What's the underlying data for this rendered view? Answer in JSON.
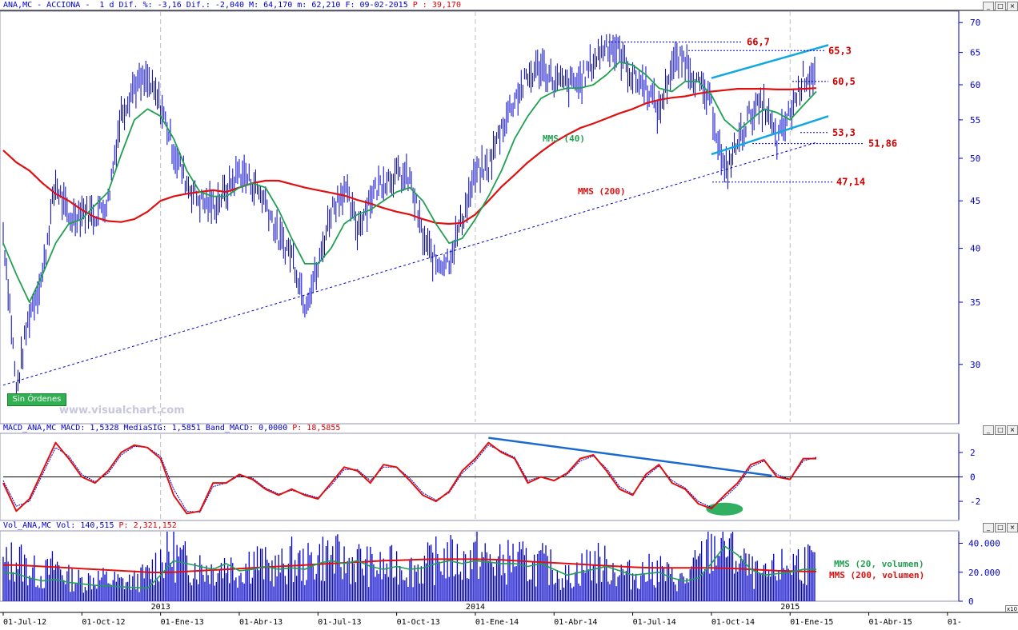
{
  "header": {
    "price": "ANA,MC - ACCIONA -  1 d Dif. %: -3,16 Dif.: -2,040 M: 64,170 m: 62,210 F: 09-02-2015",
    "price_p": "P : 39,170",
    "macd": "MACD_ANA,MC MACD: 1,5328 MediaSIG: 1,5851 Band_MACD: 0,0000",
    "macd_p": "P: 18,5855",
    "vol": "Vol_ANA,MC Vol: 140,515",
    "vol_p": "P: 2,321,152"
  },
  "brand": "www.visualchart.com",
  "badge": "Sin Órdenes",
  "scale_icon": "x10",
  "icons": [
    "minimize-icon",
    "maximize-icon",
    "close-icon"
  ],
  "colors": {
    "price_bars": "#0000c8",
    "sma40": "#20a050",
    "sma200": "#e01010",
    "trendline": "#0000c8",
    "channel": "#10a8e0",
    "macd": "#e01010",
    "signal": "#0000c8",
    "highlight": "#30b060",
    "axis_text": "#0000c8",
    "annotation_text": "#d00000"
  },
  "chart_data": [
    {
      "type": "line",
      "panel": "price",
      "y_scale": "log",
      "ylim": [
        26,
        72
      ],
      "ytick_labels": [
        "70",
        "65",
        "60",
        "55",
        "50",
        "45",
        "40",
        "35",
        "30"
      ],
      "xtick_labels": [
        "01-Jul-12",
        "01-Oct-12",
        "01-Ene-13",
        "01-Abr-13",
        "01-Jul-13",
        "01-Oct-13",
        "01-Ene-14",
        "01-Abr-14",
        "01-Jul-14",
        "01-Oct-14",
        "01-Ene-15",
        "01-Abr-15",
        "01-"
      ],
      "year_labels": [
        "2013",
        "2014",
        "2015"
      ],
      "x": [
        "01-Jul-12",
        "15-Jul-12",
        "01-Ago-12",
        "15-Ago-12",
        "01-Sep-12",
        "15-Sep-12",
        "01-Oct-12",
        "15-Oct-12",
        "01-Nov-12",
        "15-Nov-12",
        "01-Dic-12",
        "15-Dic-12",
        "01-Ene-13",
        "15-Ene-13",
        "01-Feb-13",
        "15-Feb-13",
        "01-Mar-13",
        "15-Mar-13",
        "01-Abr-13",
        "15-Abr-13",
        "01-May-13",
        "15-May-13",
        "01-Jun-13",
        "15-Jun-13",
        "01-Jul-13",
        "15-Jul-13",
        "01-Ago-13",
        "15-Ago-13",
        "01-Sep-13",
        "15-Sep-13",
        "01-Oct-13",
        "15-Oct-13",
        "01-Nov-13",
        "15-Nov-13",
        "01-Dic-13",
        "15-Dic-13",
        "01-Ene-14",
        "15-Ene-14",
        "01-Feb-14",
        "15-Feb-14",
        "01-Mar-14",
        "15-Mar-14",
        "01-Abr-14",
        "15-Abr-14",
        "01-May-14",
        "15-May-14",
        "01-Jun-14",
        "15-Jun-14",
        "01-Jul-14",
        "15-Jul-14",
        "01-Ago-14",
        "15-Ago-14",
        "01-Sep-14",
        "15-Sep-14",
        "01-Oct-14",
        "15-Oct-14",
        "01-Nov-14",
        "15-Nov-14",
        "01-Dic-14",
        "15-Dic-14",
        "01-Ene-15",
        "15-Ene-15",
        "09-Feb-15"
      ],
      "series": [
        {
          "name": "ANA,MC",
          "values": [
            41.5,
            28.0,
            34.0,
            37.5,
            47.0,
            43.0,
            44.0,
            43.5,
            45.0,
            56.0,
            60.0,
            60.5,
            57.0,
            51.0,
            47.0,
            45.0,
            44.5,
            46.0,
            48.5,
            47.0,
            45.0,
            41.0,
            39.5,
            35.0,
            38.0,
            44.0,
            46.5,
            42.0,
            45.5,
            47.5,
            48.0,
            47.5,
            41.0,
            38.5,
            39.0,
            43.0,
            48.0,
            49.0,
            54.0,
            58.0,
            61.0,
            63.0,
            60.5,
            60.0,
            60.5,
            63.5,
            66.5,
            65.0,
            61.0,
            60.0,
            56.0,
            63.0,
            64.0,
            60.0,
            57.0,
            48.0,
            52.0,
            56.0,
            57.0,
            52.0,
            56.0,
            61.0,
            62.0
          ]
        },
        {
          "name": "MMS (40)",
          "values": [
            40.5,
            37.5,
            35.0,
            37.5,
            40.5,
            42.5,
            43.0,
            44.5,
            46.0,
            50.5,
            55.0,
            56.5,
            55.5,
            52.5,
            48.5,
            46.0,
            45.5,
            45.5,
            46.5,
            47.0,
            46.5,
            44.0,
            41.0,
            38.5,
            38.5,
            40.0,
            42.5,
            43.5,
            44.0,
            45.0,
            46.0,
            46.5,
            45.0,
            42.5,
            40.5,
            41.0,
            43.0,
            45.5,
            48.5,
            52.5,
            55.5,
            58.0,
            59.0,
            59.5,
            59.5,
            60.0,
            61.5,
            63.5,
            63.0,
            61.5,
            59.5,
            59.0,
            60.5,
            60.5,
            58.5,
            55.0,
            53.5,
            55.0,
            56.5,
            56.0,
            55.0,
            57.0,
            59.0
          ]
        },
        {
          "name": "MMS (200)",
          "values": [
            51.0,
            49.5,
            48.5,
            47.0,
            45.8,
            45.0,
            44.0,
            43.2,
            42.8,
            42.7,
            43.0,
            43.8,
            45.0,
            45.5,
            45.8,
            46.0,
            46.2,
            46.0,
            46.5,
            47.0,
            47.3,
            47.3,
            46.9,
            46.5,
            46.2,
            45.9,
            45.6,
            45.1,
            44.7,
            44.2,
            43.8,
            43.5,
            43.0,
            42.6,
            42.5,
            42.6,
            43.5,
            45.0,
            46.6,
            48.0,
            49.5,
            50.8,
            52.0,
            53.0,
            53.9,
            54.5,
            55.2,
            55.9,
            56.5,
            57.3,
            57.8,
            58.1,
            58.3,
            58.7,
            59.0,
            59.2,
            59.4,
            59.4,
            59.4,
            59.3,
            59.3,
            59.4,
            59.5
          ]
        }
      ],
      "annotations": [
        {
          "label": "66,7",
          "value": 66.7
        },
        {
          "label": "65,3",
          "value": 65.3
        },
        {
          "label": "60,5",
          "value": 60.5
        },
        {
          "label": "53,3",
          "value": 53.3
        },
        {
          "label": "51,86",
          "value": 51.86
        },
        {
          "label": "47,14",
          "value": 47.14
        }
      ],
      "series_labels": [
        "MMS (40)",
        "MMS (200)"
      ],
      "trendline": {
        "from": [
          "01-Jul-12",
          28.5
        ],
        "to": [
          "09-Feb-15",
          52.0
        ]
      },
      "channel": {
        "upper": [
          [
            "01-Oct-14",
            61.0
          ],
          [
            "09-Feb-15",
            66.2
          ]
        ],
        "lower": [
          [
            "01-Oct-14",
            50.5
          ],
          [
            "09-Feb-15",
            55.5
          ]
        ]
      }
    },
    {
      "type": "line",
      "panel": "macd",
      "ylim": [
        -3.5,
        3.5
      ],
      "ytick_labels": [
        "2",
        "0",
        "-2"
      ],
      "x_ref": "same as price panel",
      "series": [
        {
          "name": "MACD",
          "values": [
            -0.5,
            -2.8,
            -1.8,
            0.5,
            2.8,
            1.5,
            0.0,
            -0.5,
            0.5,
            2.0,
            2.6,
            2.4,
            1.5,
            -1.5,
            -3.0,
            -2.8,
            -0.5,
            -0.5,
            0.2,
            -0.2,
            -1.0,
            -1.5,
            -1.0,
            -1.5,
            -1.8,
            -0.5,
            0.8,
            0.5,
            -0.5,
            1.0,
            0.8,
            -0.3,
            -1.5,
            -2.0,
            -1.2,
            0.5,
            1.5,
            2.8,
            2.0,
            1.5,
            -0.5,
            0.0,
            -0.3,
            0.3,
            1.5,
            1.8,
            0.5,
            -1.0,
            -1.5,
            0.2,
            1.0,
            -0.5,
            -1.0,
            -2.2,
            -2.6,
            -1.5,
            -0.5,
            1.0,
            1.4,
            0.0,
            -0.2,
            1.5,
            1.5
          ]
        },
        {
          "name": "MediaSIG",
          "values": [
            -0.3,
            -2.4,
            -2.0,
            0.2,
            2.4,
            1.7,
            0.2,
            -0.4,
            0.3,
            1.8,
            2.5,
            2.4,
            1.7,
            -1.0,
            -2.8,
            -2.9,
            -0.8,
            -0.5,
            0.1,
            -0.1,
            -0.9,
            -1.4,
            -1.1,
            -1.4,
            -1.7,
            -0.7,
            0.6,
            0.6,
            -0.3,
            0.8,
            0.8,
            -0.1,
            -1.3,
            -1.9,
            -1.3,
            0.3,
            1.3,
            2.6,
            2.1,
            1.6,
            -0.3,
            0.0,
            -0.3,
            0.2,
            1.3,
            1.7,
            0.7,
            -0.8,
            -1.4,
            0.0,
            0.9,
            -0.3,
            -0.9,
            -2.0,
            -2.5,
            -1.7,
            -0.7,
            0.8,
            1.3,
            0.2,
            -0.2,
            1.3,
            1.6
          ]
        }
      ],
      "trendline": {
        "from": [
          "15-Ene-14",
          3.2
        ],
        "to": [
          "01-Dic-14",
          0.1
        ]
      },
      "highlight": {
        "at": "15-Oct-14",
        "value": -2.5
      }
    },
    {
      "type": "bar",
      "panel": "volume",
      "ylim": [
        0,
        48000
      ],
      "ytick_labels": [
        "40.000",
        "20.000",
        "0"
      ],
      "x_ref": "same as price panel",
      "series": [
        {
          "name": "Vol",
          "values": [
            24000,
            30000,
            22000,
            17000,
            25000,
            16000,
            14000,
            16000,
            15000,
            13000,
            14000,
            18000,
            30000,
            32000,
            26000,
            24000,
            22000,
            26000,
            20000,
            30000,
            24000,
            22000,
            28000,
            24000,
            30000,
            32000,
            26000,
            28000,
            24000,
            22000,
            26000,
            22000,
            24000,
            28000,
            30000,
            26000,
            32000,
            28000,
            25000,
            30000,
            24000,
            26000,
            22000,
            16000,
            22000,
            28000,
            24000,
            20000,
            18000,
            20000,
            22000,
            16000,
            14000,
            26000,
            36000,
            40000,
            30000,
            20000,
            16000,
            22000,
            26000,
            28000,
            24000
          ]
        },
        {
          "name": "MMS (20, volumen)",
          "values": [
            20000,
            19000,
            16000,
            14000,
            15000,
            13000,
            12000,
            11000,
            10500,
            10000,
            9500,
            9000,
            18000,
            28000,
            26000,
            24000,
            22000,
            26000,
            21000,
            22000,
            24000,
            22000,
            23000,
            22000,
            26000,
            28000,
            26000,
            28000,
            24000,
            22000,
            24000,
            22000,
            23000,
            26000,
            28000,
            26000,
            28000,
            27000,
            26000,
            26000,
            24000,
            26000,
            22000,
            18000,
            20000,
            22000,
            24000,
            21000,
            18000,
            19000,
            20000,
            16000,
            14000,
            16000,
            26000,
            38000,
            32000,
            22000,
            18000,
            19000,
            20000,
            22000,
            22000
          ]
        },
        {
          "name": "MMS (200, volumen)",
          "values": [
            25000,
            25000,
            24500,
            24000,
            23500,
            23000,
            22500,
            22000,
            21500,
            21000,
            20500,
            20000,
            19800,
            20000,
            20500,
            21000,
            21500,
            22000,
            22500,
            23000,
            23500,
            24000,
            24500,
            25000,
            25500,
            26000,
            26500,
            27000,
            27500,
            28000,
            28200,
            28500,
            28800,
            29000,
            29000,
            29000,
            29000,
            28800,
            28500,
            28000,
            27500,
            27000,
            26500,
            26000,
            25500,
            25000,
            24500,
            24000,
            23500,
            23200,
            23000,
            23000,
            23000,
            23000,
            23000,
            22800,
            22500,
            22000,
            21500,
            21000,
            20800,
            20600,
            20500
          ]
        }
      ],
      "series_labels": [
        "MMS (20, volumen)",
        "MMS (200, volumen)"
      ]
    }
  ]
}
